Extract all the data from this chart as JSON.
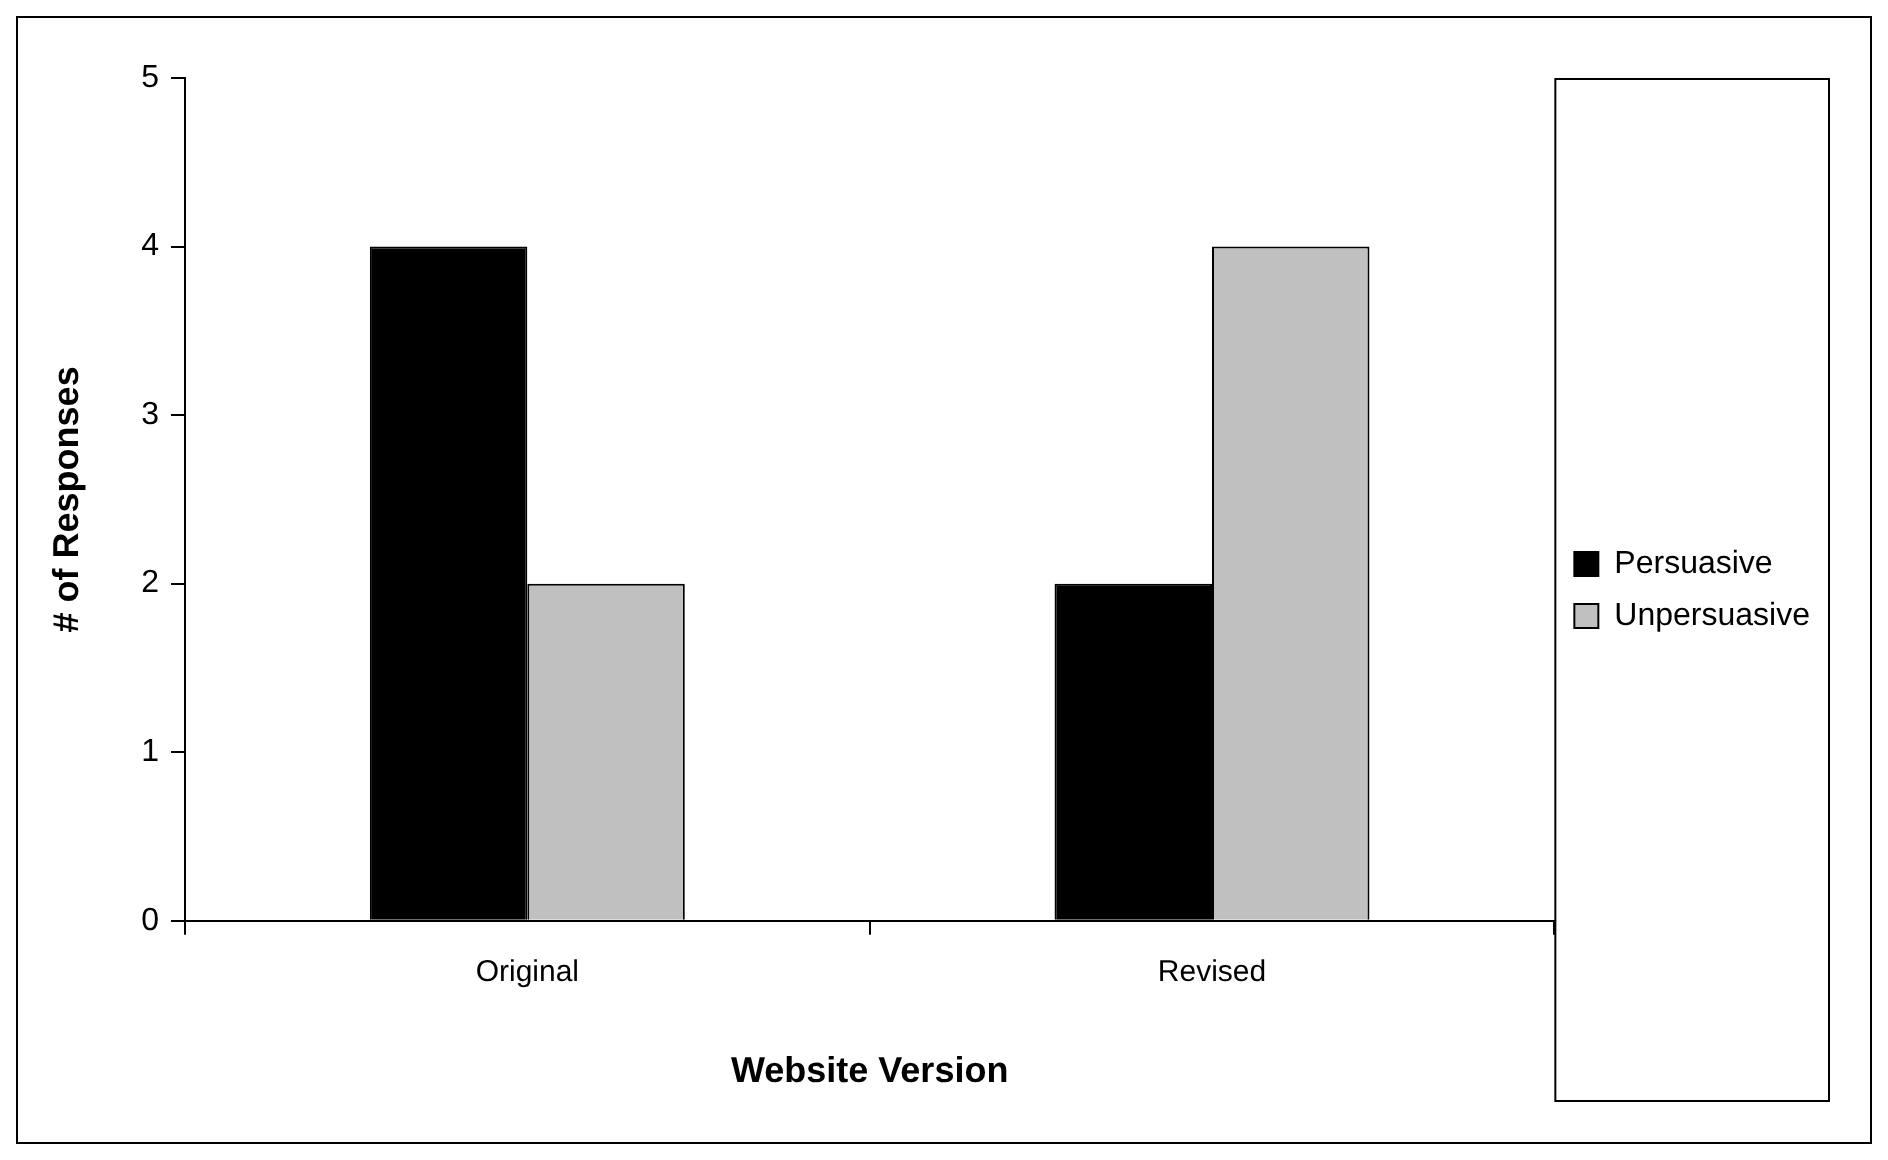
{
  "chart_data": {
    "type": "bar",
    "xlabel": "Website Version",
    "ylabel": "# of Responses",
    "categories": [
      "Original",
      "Revised"
    ],
    "series": [
      {
        "name": "Persuasive",
        "color": "#000000",
        "values": [
          4,
          2
        ]
      },
      {
        "name": "Unpersuasive",
        "color": "#c0c0c0",
        "values": [
          2,
          4
        ]
      }
    ],
    "ylim": [
      0,
      5
    ],
    "yticks": [
      0,
      1,
      2,
      3,
      4,
      5
    ],
    "grid": false,
    "legend": "right"
  }
}
